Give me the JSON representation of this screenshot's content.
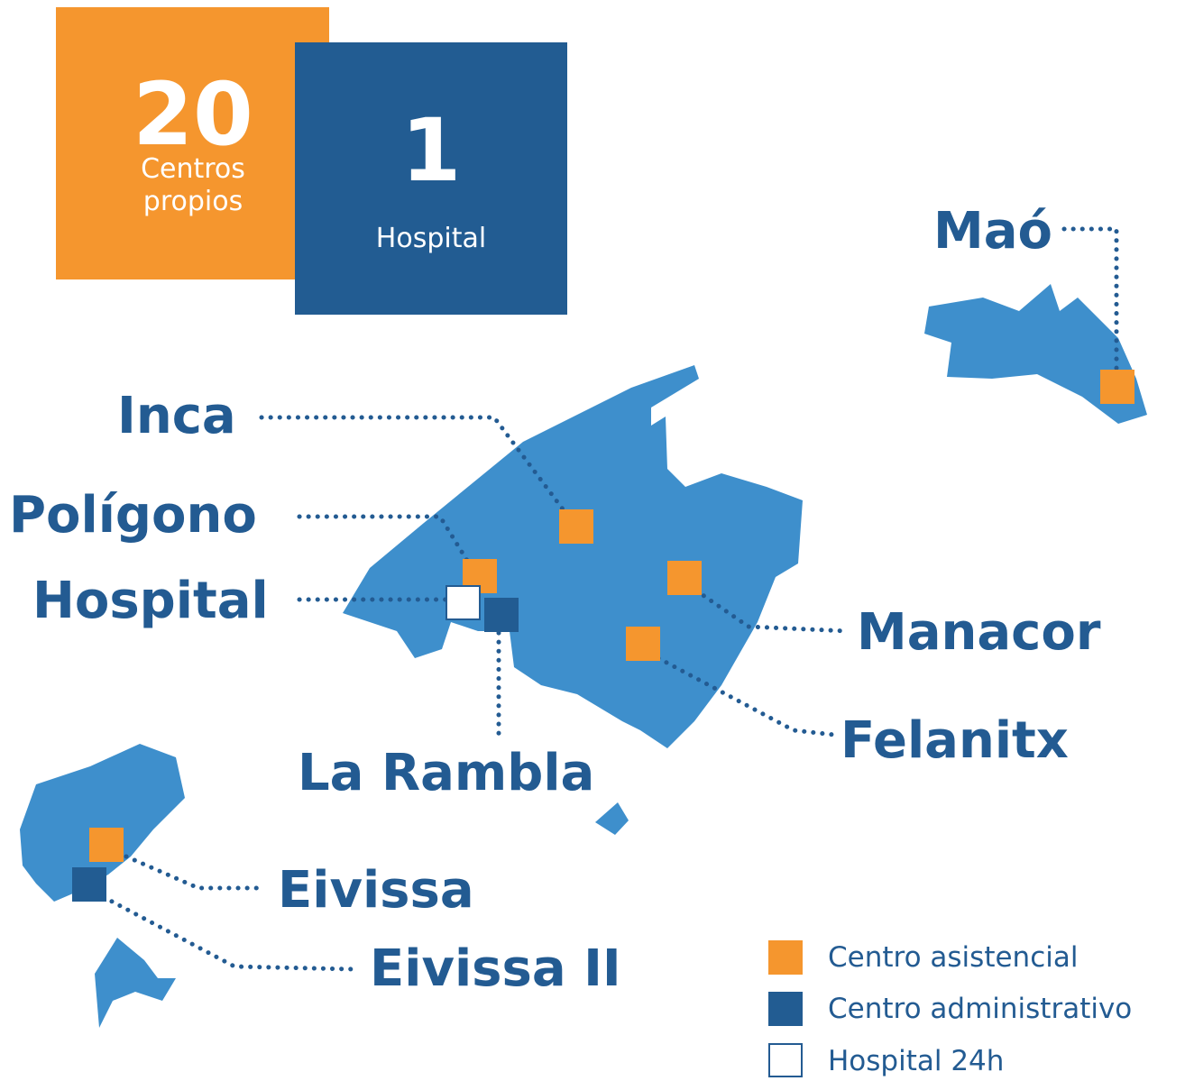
{
  "stats": [
    {
      "number": "20",
      "label_lines": [
        "Centros",
        "propios"
      ]
    },
    {
      "number": "1",
      "label_lines": [
        "Hospital"
      ]
    }
  ],
  "locations": [
    "Maó",
    "Inca",
    "Polígono",
    "Hospital",
    "La Rambla",
    "Manacor",
    "Felanitx",
    "Eivissa",
    "Eivissa II"
  ],
  "legend": [
    "Centro asistencial",
    "Centro administrativo",
    "Hospital 24h"
  ]
}
